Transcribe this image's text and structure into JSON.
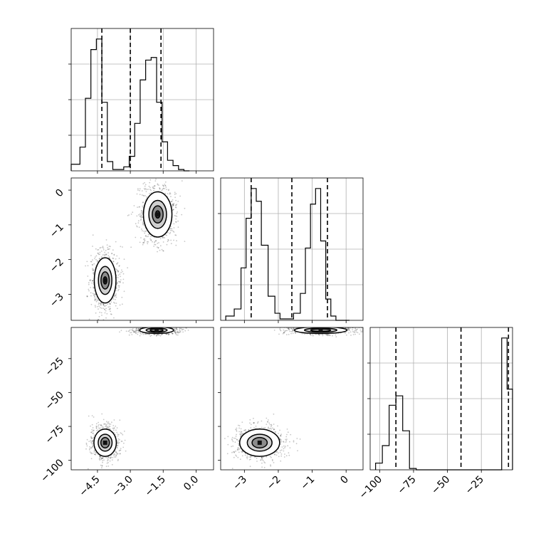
{
  "chart_data": {
    "type": "corner",
    "parameters": [
      {
        "xlim": [
          -5.7,
          0.8
        ],
        "quantile_lines": [
          -4.3,
          -3.0,
          -1.6
        ],
        "hist_bins": [
          -5.7,
          -5.3,
          -5.05,
          -4.8,
          -4.55,
          -4.3,
          -4.05,
          -3.8,
          -3.55,
          -3.3,
          -3.05,
          -2.8,
          -2.55,
          -2.3,
          -2.05,
          -1.8,
          -1.55,
          -1.3,
          -1.05,
          -0.8,
          -0.55,
          -0.3
        ],
        "hist_counts": [
          0.05,
          0.18,
          0.55,
          0.92,
          1.0,
          0.52,
          0.07,
          0.01,
          0.01,
          0.03,
          0.11,
          0.36,
          0.69,
          0.84,
          0.86,
          0.52,
          0.22,
          0.08,
          0.04,
          0.01,
          0.0
        ]
      },
      {
        "xlim": [
          -3.7,
          0.5
        ],
        "quantile_lines": [
          -2.8,
          -1.6,
          -0.55
        ],
        "hist_bins": [
          -3.55,
          -3.3,
          -3.1,
          -2.95,
          -2.8,
          -2.65,
          -2.5,
          -2.3,
          -2.1,
          -1.95,
          -1.75,
          -1.55,
          -1.35,
          -1.2,
          -1.05,
          -0.9,
          -0.75,
          -0.6,
          -0.45,
          -0.3,
          -0.15,
          0.0,
          0.1
        ],
        "hist_counts": [
          0.03,
          0.08,
          0.37,
          0.72,
          0.93,
          0.84,
          0.53,
          0.17,
          0.05,
          0.01,
          0.01,
          0.05,
          0.19,
          0.51,
          0.82,
          0.93,
          0.56,
          0.15,
          0.03,
          0.0,
          0.0,
          0.0
        ]
      },
      {
        "xlim": [
          -107,
          -2
        ],
        "quantile_lines": [
          -88,
          -40,
          -5
        ],
        "hist_bins": [
          -103,
          -98,
          -93,
          -88,
          -83,
          -78,
          -73,
          -68,
          -10,
          -6,
          -2
        ],
        "hist_counts": [
          0.05,
          0.18,
          0.48,
          0.55,
          0.29,
          0.01,
          0.0,
          0.0,
          0.98,
          0.6
        ]
      }
    ],
    "axes": {
      "bottom_x": [
        {
          "ticks": [
            -4.5,
            -3.0,
            -1.5,
            0.0
          ],
          "labels": [
            "−4.5",
            "−3.0",
            "−1.5",
            "0.0"
          ]
        },
        {
          "ticks": [
            -3,
            -2,
            -1,
            0
          ],
          "labels": [
            "−3",
            "−2",
            "−1",
            "0"
          ]
        },
        {
          "ticks": [
            -100,
            -75,
            -50,
            -25
          ],
          "labels": [
            "−100",
            "−75",
            "−50",
            "−25"
          ]
        }
      ],
      "left_y": [
        {
          "ylim": [
            -3.75,
            0.35
          ],
          "ticks": [
            0,
            -1,
            -2,
            -3
          ],
          "labels": [
            "0",
            "−1",
            "−2",
            "−3"
          ]
        },
        {
          "ylim": [
            -107,
            -2
          ],
          "ticks": [
            -25,
            -50,
            -75,
            -100
          ],
          "labels": [
            "−25",
            "−50",
            "−75",
            "−100"
          ]
        }
      ],
      "grid": true
    },
    "pairs": [
      {
        "row": 1,
        "col": 0,
        "clusters": [
          {
            "cx": -4.15,
            "cy": -2.6,
            "sx": 0.32,
            "sy": 0.42,
            "n": 900,
            "levels": [
              1.0,
              0.62,
              0.38,
              0.16
            ]
          },
          {
            "cx": -1.75,
            "cy": -0.7,
            "sx": 0.42,
            "sy": 0.42,
            "n": 900,
            "levels": [
              1.0,
              0.62,
              0.38,
              0.16
            ]
          }
        ]
      },
      {
        "row": 2,
        "col": 0,
        "clusters": [
          {
            "cx": -4.15,
            "cy": -87,
            "sx": 0.33,
            "sy": 6.5,
            "n": 800,
            "levels": [
              1.0,
              0.62,
              0.38
            ]
          },
          {
            "cx": -1.8,
            "cy": -4,
            "sx": 0.5,
            "sy": 1.6,
            "n": 800,
            "levels": [
              1.0,
              0.62,
              0.38
            ]
          }
        ]
      },
      {
        "row": 2,
        "col": 1,
        "clusters": [
          {
            "cx": -2.55,
            "cy": -87,
            "sx": 0.38,
            "sy": 6.5,
            "n": 800,
            "levels": [
              1.0,
              0.62,
              0.38
            ]
          },
          {
            "cx": -0.75,
            "cy": -4,
            "sx": 0.5,
            "sy": 1.6,
            "n": 800,
            "levels": [
              1.0,
              0.62,
              0.38
            ]
          }
        ]
      }
    ]
  }
}
